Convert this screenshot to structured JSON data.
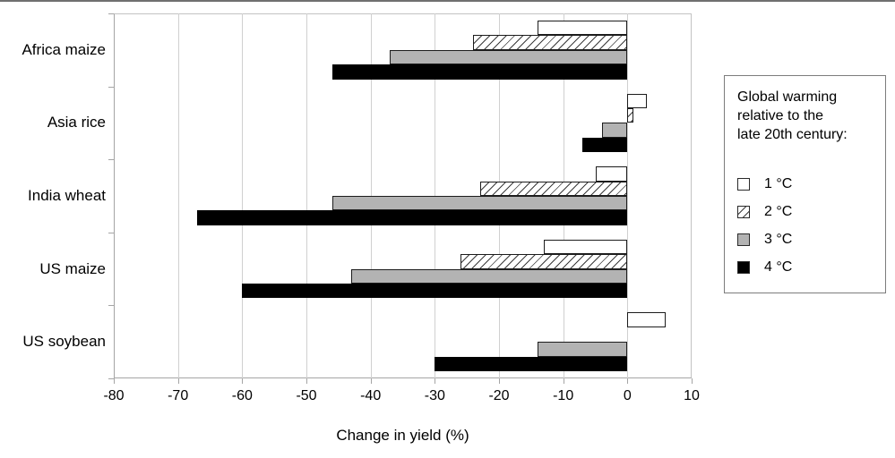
{
  "chart_data": {
    "type": "bar",
    "orientation": "horizontal",
    "xlabel": "Change in yield (%)",
    "xlim": [
      -80,
      10
    ],
    "xticks": [
      -80,
      -70,
      -60,
      -50,
      -40,
      -30,
      -20,
      -10,
      0,
      10
    ],
    "grid": "vertical",
    "categories": [
      "Africa maize",
      "Asia rice",
      "India wheat",
      "US maize",
      "US soybean"
    ],
    "series": [
      {
        "name": "1 °C",
        "style": "white",
        "values": [
          -14,
          3,
          -5,
          -13,
          6
        ]
      },
      {
        "name": "2 °C",
        "style": "hatched",
        "values": [
          -24,
          1,
          -23,
          -26,
          null
        ]
      },
      {
        "name": "3 °C",
        "style": "gray",
        "values": [
          -37,
          -4,
          -46,
          -43,
          -14
        ]
      },
      {
        "name": "4 °C",
        "style": "black",
        "values": [
          -46,
          -7,
          -67,
          -60,
          -30
        ]
      }
    ],
    "legend": {
      "position": "right",
      "title": "Global warming relative to the late 20th century:",
      "title_lines": [
        "Global warming",
        "relative to the",
        "late 20th century:"
      ]
    }
  },
  "colors": {
    "bar_gray_fill": "#b3b3b3",
    "bar_black_fill": "#000000",
    "bar_border": "#1c1c1c",
    "gridline": "#d0d0d0",
    "axis": "#a5a5a5",
    "legend_border": "#7c7c7c",
    "text": "#000000"
  }
}
